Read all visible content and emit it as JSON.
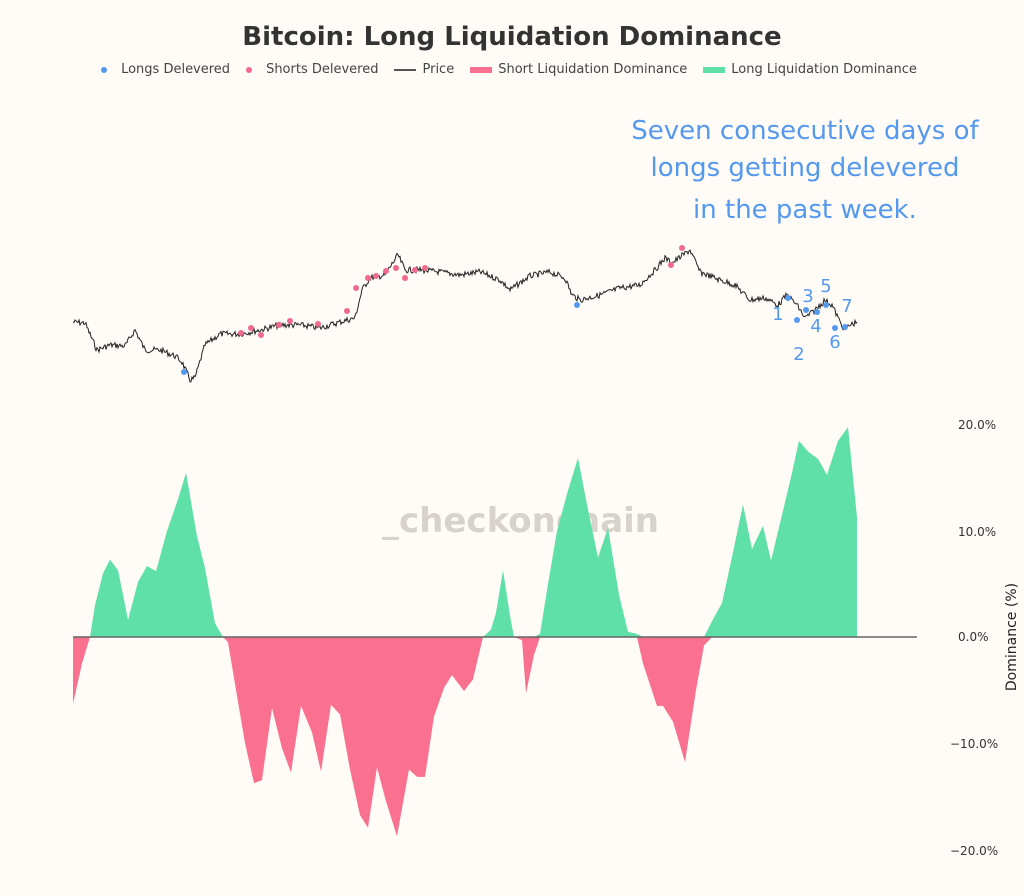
{
  "chart_data": {
    "type": "area",
    "title": "Bitcoin: Long Liquidation Dominance",
    "ylabel": "Dominance (%)",
    "ylim": [
      -20,
      20
    ],
    "yticks": [
      "20.0%",
      "10.0%",
      "0.0%",
      "−10.0%",
      "−20.0%"
    ],
    "grid": false,
    "legend_placement": "top-center",
    "legend": [
      {
        "label": "Longs Delevered",
        "kind": "dot",
        "color": "#5599ee"
      },
      {
        "label": "Shorts Delevered",
        "kind": "dot",
        "color": "#f06a8d"
      },
      {
        "label": "Price",
        "kind": "line",
        "color": "#333333"
      },
      {
        "label": "Short Liquidation Dominance",
        "kind": "bar",
        "color": "#f9718f"
      },
      {
        "label": "Long Liquidation Dominance",
        "kind": "bar",
        "color": "#5ee0a8"
      }
    ],
    "dominance": {
      "t": [
        0,
        9,
        17,
        22,
        30,
        37,
        45,
        50,
        55,
        65,
        74,
        83,
        94,
        105,
        113,
        124,
        132,
        142,
        150,
        155,
        163,
        172,
        181,
        189,
        199,
        209,
        218,
        228,
        239,
        248,
        258,
        267,
        277,
        287,
        295,
        304,
        313,
        324,
        336,
        344,
        352,
        361,
        371,
        379,
        391,
        400,
        410,
        418,
        423,
        430,
        437,
        441,
        449,
        453,
        461,
        467,
        475,
        484,
        494,
        505,
        515,
        525,
        535,
        546,
        555,
        564,
        570,
        584,
        590,
        600,
        612,
        623,
        631,
        639,
        649,
        660,
        670,
        679,
        690,
        698,
        709,
        719,
        726,
        735,
        745,
        754,
        765,
        775,
        784
      ],
      "values": [
        -6.3,
        -2.5,
        0,
        3,
        6,
        7.3,
        6.3,
        4,
        1.6,
        5.2,
        6.7,
        6.2,
        10,
        13,
        15.5,
        9.5,
        6.5,
        1.3,
        0,
        -0.5,
        -5,
        -10,
        -13.8,
        -13.5,
        -6.7,
        -10.5,
        -12.8,
        -6.5,
        -9,
        -12.7,
        -6.4,
        -7.3,
        -12.5,
        -16.8,
        -18,
        -12.3,
        -15.5,
        -18.8,
        -12.5,
        -13.2,
        -13.2,
        -7.5,
        -4.8,
        -3.6,
        -5.1,
        -4,
        0,
        0.7,
        2.3,
        6.3,
        2,
        0,
        -0.3,
        -5.3,
        -1.7,
        0.3,
        5,
        10,
        13.5,
        16.9,
        12,
        7.5,
        10.3,
        4,
        0.5,
        0.3,
        -2.5,
        -6.5,
        -6.5,
        -8,
        -11.8,
        -5,
        -0.8,
        1.5,
        3.2,
        8,
        12.5,
        8.3,
        10.5,
        7.2,
        11.5,
        15.5,
        18.5,
        17.5,
        16.8,
        15.3,
        18.5,
        19.8,
        11.3
      ]
    },
    "price_index": {
      "t": [
        0,
        12,
        24,
        37,
        52,
        62,
        72,
        87,
        102,
        109,
        117,
        122,
        132,
        147,
        167,
        187,
        207,
        227,
        247,
        267,
        282,
        289,
        297,
        312,
        325,
        332,
        347,
        367,
        387,
        407,
        427,
        437,
        457,
        477,
        492,
        499,
        507,
        527,
        547,
        567,
        582,
        592,
        599,
        617,
        627,
        647,
        662,
        677,
        692,
        705,
        714,
        724,
        732,
        742,
        752,
        759,
        767,
        772,
        777,
        784
      ],
      "values": [
        100,
        99.5,
        86,
        88.5,
        88,
        96,
        86,
        86,
        83,
        80,
        71,
        72,
        88.5,
        94,
        94,
        96,
        98.5,
        98.5,
        97,
        100,
        102,
        116,
        122,
        123.5,
        133.5,
        126,
        126,
        125,
        123.5,
        125,
        121,
        116,
        123,
        125,
        122,
        113.5,
        111,
        113.5,
        117,
        118.5,
        126,
        132,
        129.5,
        136,
        125,
        121,
        118.5,
        111,
        112,
        108.5,
        113.5,
        108.5,
        102,
        106,
        111,
        108.5,
        100,
        96,
        98.5,
        100
      ]
    },
    "longs_delevered": [
      {
        "t": 111,
        "price": 75
      },
      {
        "t": 504,
        "price": 108.5
      },
      {
        "t": 715,
        "price": 112,
        "label": "1"
      },
      {
        "t": 724,
        "price": 101,
        "label": "2"
      },
      {
        "t": 733,
        "price": 106,
        "label": "3"
      },
      {
        "t": 744,
        "price": 105,
        "label": "4"
      },
      {
        "t": 753,
        "price": 108.5,
        "label": "5"
      },
      {
        "t": 762,
        "price": 97,
        "label": "6"
      },
      {
        "t": 772,
        "price": 97.5,
        "label": "7"
      }
    ],
    "shorts_delevered": [
      {
        "t": 168,
        "price": 94.5
      },
      {
        "t": 178,
        "price": 97
      },
      {
        "t": 188,
        "price": 93.5
      },
      {
        "t": 206,
        "price": 98.5
      },
      {
        "t": 217,
        "price": 100.5
      },
      {
        "t": 245,
        "price": 99
      },
      {
        "t": 274,
        "price": 105.5
      },
      {
        "t": 283,
        "price": 117
      },
      {
        "t": 295,
        "price": 122
      },
      {
        "t": 303,
        "price": 123
      },
      {
        "t": 313,
        "price": 125.5
      },
      {
        "t": 323,
        "price": 127
      },
      {
        "t": 332,
        "price": 122
      },
      {
        "t": 342,
        "price": 126
      },
      {
        "t": 352,
        "price": 127
      },
      {
        "t": 598,
        "price": 128.5
      },
      {
        "t": 609,
        "price": 137
      }
    ]
  },
  "annotation": {
    "line1": "Seven consecutive days of",
    "line2": "longs getting delevered",
    "line3": "in the past week."
  },
  "watermark": "_checkonchain"
}
